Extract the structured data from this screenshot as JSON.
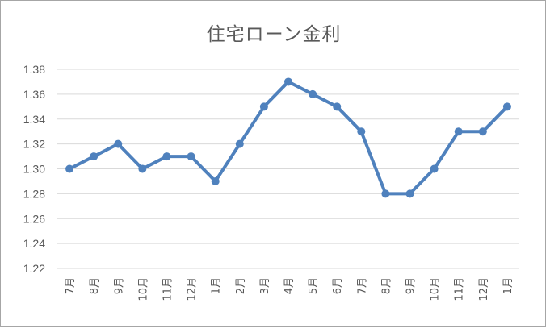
{
  "chart_data": {
    "type": "line",
    "title": "住宅ローン金利",
    "xlabel": "",
    "ylabel": "",
    "categories": [
      "7月",
      "8月",
      "9月",
      "10月",
      "11月",
      "12月",
      "1月",
      "2月",
      "3月",
      "4月",
      "5月",
      "6月",
      "7月",
      "8月",
      "9月",
      "10月",
      "11月",
      "12月",
      "1月"
    ],
    "series": [
      {
        "values": [
          1.3,
          1.31,
          1.32,
          1.3,
          1.31,
          1.31,
          1.29,
          1.32,
          1.35,
          1.37,
          1.36,
          1.35,
          1.33,
          1.28,
          1.28,
          1.3,
          1.33,
          1.33,
          1.35
        ]
      }
    ],
    "ylim": [
      1.22,
      1.38
    ],
    "yticks": [
      "1.22",
      "1.24",
      "1.26",
      "1.28",
      "1.30",
      "1.32",
      "1.34",
      "1.36",
      "1.38"
    ],
    "grid": "horizontal",
    "legend": "none",
    "colors": {
      "line": "#4f81bd",
      "grid": "#d9d9d9",
      "text": "#595959"
    }
  }
}
